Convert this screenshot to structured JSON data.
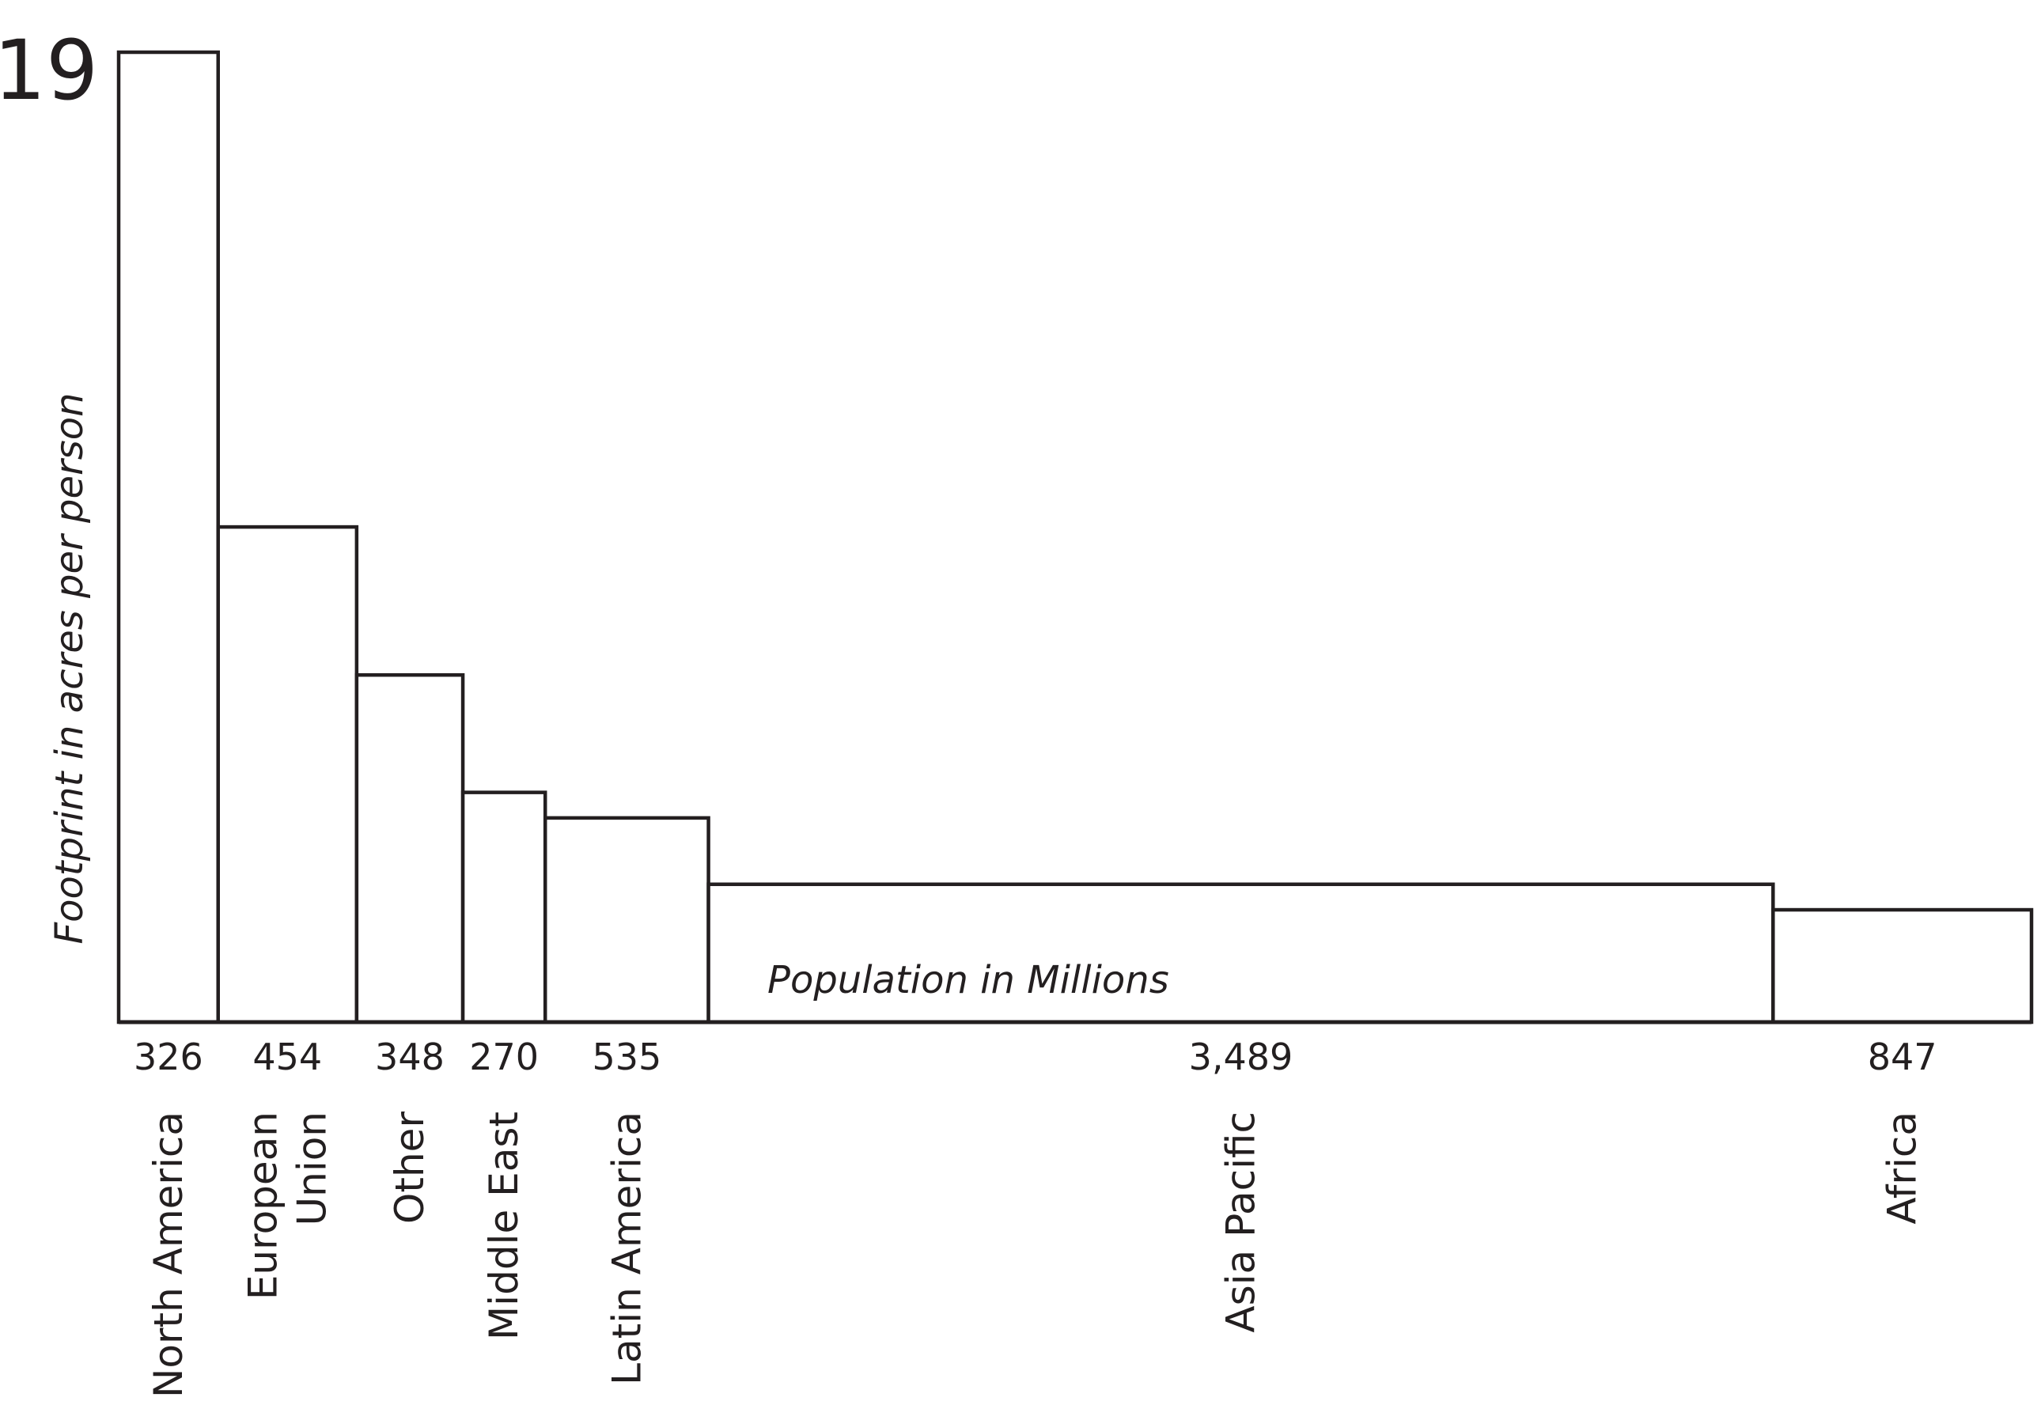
{
  "chart_data": {
    "type": "bar",
    "variant": "variable-width",
    "categories": [
      [
        "North America"
      ],
      [
        "European",
        "Union"
      ],
      [
        "Other"
      ],
      [
        "Middle East"
      ],
      [
        "Latin America"
      ],
      [
        "Asia Pacific"
      ],
      [
        "Africa"
      ]
    ],
    "widths": [
      326,
      454,
      348,
      270,
      535,
      3489,
      847
    ],
    "width_labels": [
      "326",
      "454",
      "348",
      "270",
      "535",
      "3,489",
      "847"
    ],
    "values": [
      19,
      9.7,
      6.8,
      4.5,
      4.0,
      2.7,
      2.2
    ],
    "ylim": [
      0,
      19
    ],
    "ymax_label": "19",
    "xlabel": "Population in Millions",
    "ylabel": "Footprint in  acres per person",
    "grid": false,
    "colors": {
      "stroke": "#231f20",
      "fill": "#ffffff"
    }
  }
}
